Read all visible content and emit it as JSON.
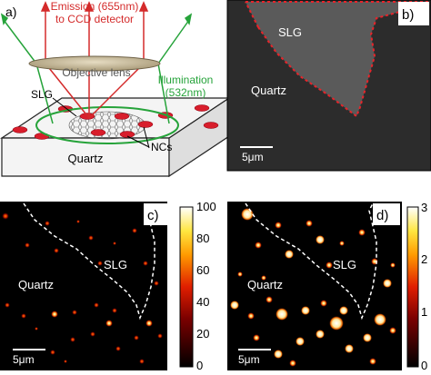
{
  "panel_a": {
    "label": "a)",
    "emission_line1": "Emission (655nm)",
    "emission_line2": "to CCD detector",
    "objective": "Objective lens",
    "illum_line1": "Illumination",
    "illum_line2": "(532nm)",
    "slg": "SLG",
    "ncs": "NCs",
    "quartz": "Quartz",
    "colors": {
      "emission": "#d42a2a",
      "illumination": "#26a33a",
      "nc": "#d81e2c"
    }
  },
  "panel_b": {
    "label": "b)",
    "slg": "SLG",
    "quartz": "Quartz",
    "scalebar": "5μm"
  },
  "panel_c": {
    "label": "c)",
    "slg": "SLG",
    "quartz": "Quartz",
    "scalebar": "5μm",
    "colorbar": {
      "ticks": [
        "100",
        "80",
        "60",
        "40",
        "20",
        "0"
      ]
    }
  },
  "panel_d": {
    "label": "d)",
    "slg": "SLG",
    "quartz": "Quartz",
    "scalebar": "5μm",
    "colorbar": {
      "ticks": [
        "3",
        "2",
        "1",
        "0"
      ]
    }
  }
}
